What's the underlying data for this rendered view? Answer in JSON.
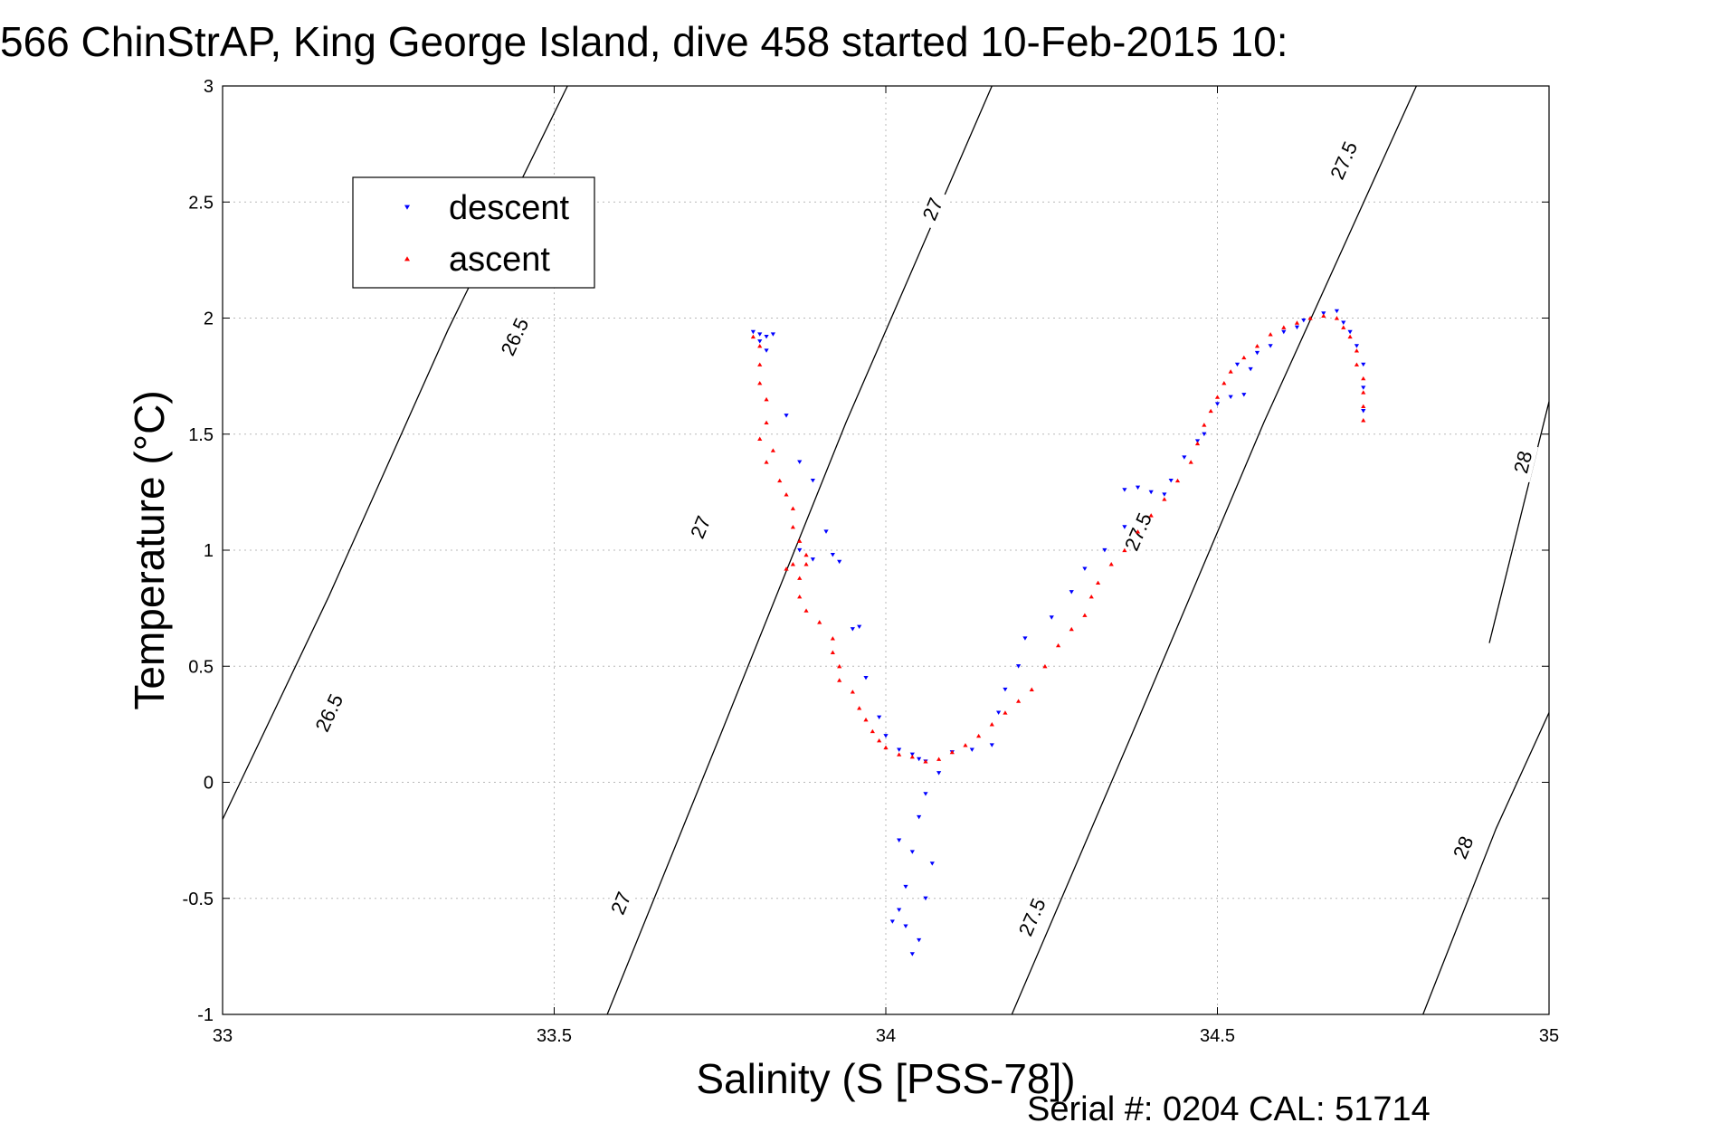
{
  "chart_data": {
    "type": "scatter",
    "title": "566 ChinStrAP, King George Island, dive 458 started 10-Feb-2015 10:",
    "xlabel": "Salinity (S [PSS-78])",
    "ylabel": "Temperature (°C)",
    "xlim": [
      33,
      35
    ],
    "ylim": [
      -1,
      3
    ],
    "xticks": [
      33,
      33.5,
      34,
      34.5,
      35
    ],
    "xtick_labels": [
      "33",
      "33.5",
      "34",
      "34.5",
      "35"
    ],
    "yticks": [
      -1,
      -0.5,
      0,
      0.5,
      1,
      1.5,
      2,
      2.5,
      3
    ],
    "ytick_labels": [
      "-1",
      "-0.5",
      "0",
      "0.5",
      "1",
      "1.5",
      "2",
      "2.5",
      "3"
    ],
    "grid": true,
    "legend_position": "top-left",
    "footer": "Serial #: 0204  CAL: 51714",
    "density_contours": [
      {
        "level": 26.5,
        "label": "26.5",
        "points": [
          [
            33.0,
            -0.16
          ],
          [
            33.16,
            0.8
          ],
          [
            33.34,
            1.95
          ],
          [
            33.52,
            3.0
          ]
        ],
        "label_positions": [
          [
            33.16,
            0.3
          ],
          [
            33.44,
            1.92
          ]
        ]
      },
      {
        "level": 27,
        "label": "27",
        "points": [
          [
            33.58,
            -1.0
          ],
          [
            33.75,
            0.2
          ],
          [
            33.94,
            1.55
          ],
          [
            34.16,
            3.0
          ]
        ],
        "label_positions": [
          [
            33.6,
            -0.52
          ],
          [
            33.72,
            1.1
          ],
          [
            34.07,
            2.47
          ]
        ]
      },
      {
        "level": 27.5,
        "label": "27.5",
        "points": [
          [
            34.19,
            -1.0
          ],
          [
            34.37,
            0.2
          ],
          [
            34.57,
            1.55
          ],
          [
            34.8,
            3.0
          ]
        ],
        "label_positions": [
          [
            34.22,
            -0.58
          ],
          [
            34.38,
            1.08
          ],
          [
            34.69,
            2.68
          ]
        ]
      },
      {
        "level": 28,
        "label": "28",
        "points": [
          [
            34.81,
            -1.0
          ],
          [
            34.92,
            -0.2
          ],
          [
            35.0,
            0.3
          ]
        ],
        "label_positions": [
          [
            34.87,
            -0.28
          ]
        ]
      },
      {
        "level": 28,
        "label": "28",
        "points": [
          [
            34.91,
            0.6
          ],
          [
            35.0,
            1.64
          ]
        ],
        "label_positions": [
          [
            34.96,
            1.38
          ]
        ]
      }
    ],
    "series": [
      {
        "name": "descent",
        "color": "#0000ff",
        "marker": "triangle-down",
        "points": [
          [
            33.8,
            1.94
          ],
          [
            33.81,
            1.93
          ],
          [
            33.82,
            1.92
          ],
          [
            33.81,
            1.9
          ],
          [
            33.83,
            1.93
          ],
          [
            33.82,
            1.86
          ],
          [
            33.85,
            1.58
          ],
          [
            33.87,
            1.38
          ],
          [
            33.89,
            1.3
          ],
          [
            33.91,
            1.08
          ],
          [
            33.87,
            1.0
          ],
          [
            33.89,
            0.96
          ],
          [
            33.92,
            0.98
          ],
          [
            33.93,
            0.95
          ],
          [
            33.95,
            0.66
          ],
          [
            33.96,
            0.67
          ],
          [
            33.97,
            0.45
          ],
          [
            33.99,
            0.28
          ],
          [
            34.0,
            0.2
          ],
          [
            34.02,
            0.14
          ],
          [
            34.04,
            0.12
          ],
          [
            34.05,
            0.1
          ],
          [
            34.06,
            0.09
          ],
          [
            34.08,
            0.04
          ],
          [
            34.06,
            -0.05
          ],
          [
            34.05,
            -0.15
          ],
          [
            34.04,
            -0.3
          ],
          [
            34.03,
            -0.45
          ],
          [
            34.02,
            -0.55
          ],
          [
            34.01,
            -0.6
          ],
          [
            34.03,
            -0.62
          ],
          [
            34.04,
            -0.74
          ],
          [
            34.05,
            -0.68
          ],
          [
            34.06,
            -0.5
          ],
          [
            34.07,
            -0.35
          ],
          [
            34.02,
            -0.25
          ],
          [
            34.1,
            0.13
          ],
          [
            34.13,
            0.14
          ],
          [
            34.16,
            0.16
          ],
          [
            34.17,
            0.3
          ],
          [
            34.18,
            0.4
          ],
          [
            34.2,
            0.5
          ],
          [
            34.21,
            0.62
          ],
          [
            34.25,
            0.71
          ],
          [
            34.28,
            0.82
          ],
          [
            34.3,
            0.92
          ],
          [
            34.33,
            1.0
          ],
          [
            34.36,
            1.1
          ],
          [
            34.36,
            1.26
          ],
          [
            34.38,
            1.27
          ],
          [
            34.4,
            1.25
          ],
          [
            34.42,
            1.24
          ],
          [
            34.43,
            1.3
          ],
          [
            34.45,
            1.4
          ],
          [
            34.47,
            1.47
          ],
          [
            34.48,
            1.5
          ],
          [
            34.5,
            1.63
          ],
          [
            34.52,
            1.66
          ],
          [
            34.54,
            1.67
          ],
          [
            34.55,
            1.78
          ],
          [
            34.53,
            1.8
          ],
          [
            34.56,
            1.85
          ],
          [
            34.58,
            1.88
          ],
          [
            34.6,
            1.94
          ],
          [
            34.62,
            1.96
          ],
          [
            34.63,
            1.99
          ],
          [
            34.66,
            2.02
          ],
          [
            34.68,
            2.03
          ],
          [
            34.69,
            1.98
          ],
          [
            34.7,
            1.94
          ],
          [
            34.71,
            1.88
          ],
          [
            34.72,
            1.8
          ],
          [
            34.72,
            1.7
          ],
          [
            34.72,
            1.6
          ]
        ]
      },
      {
        "name": "ascent",
        "color": "#ff0000",
        "marker": "triangle-up",
        "points": [
          [
            33.8,
            1.92
          ],
          [
            33.81,
            1.88
          ],
          [
            33.81,
            1.8
          ],
          [
            33.81,
            1.72
          ],
          [
            33.82,
            1.65
          ],
          [
            33.82,
            1.55
          ],
          [
            33.81,
            1.48
          ],
          [
            33.83,
            1.43
          ],
          [
            33.82,
            1.38
          ],
          [
            33.84,
            1.3
          ],
          [
            33.85,
            1.24
          ],
          [
            33.86,
            1.18
          ],
          [
            33.86,
            1.1
          ],
          [
            33.87,
            1.04
          ],
          [
            33.88,
            0.98
          ],
          [
            33.86,
            0.94
          ],
          [
            33.85,
            0.92
          ],
          [
            33.88,
            0.94
          ],
          [
            33.87,
            0.88
          ],
          [
            33.87,
            0.8
          ],
          [
            33.88,
            0.74
          ],
          [
            33.9,
            0.69
          ],
          [
            33.92,
            0.62
          ],
          [
            33.92,
            0.56
          ],
          [
            33.93,
            0.5
          ],
          [
            33.93,
            0.44
          ],
          [
            33.95,
            0.39
          ],
          [
            33.96,
            0.32
          ],
          [
            33.97,
            0.27
          ],
          [
            33.98,
            0.22
          ],
          [
            33.99,
            0.18
          ],
          [
            34.0,
            0.15
          ],
          [
            34.02,
            0.12
          ],
          [
            34.04,
            0.11
          ],
          [
            34.06,
            0.09
          ],
          [
            34.08,
            0.1
          ],
          [
            34.1,
            0.13
          ],
          [
            34.12,
            0.16
          ],
          [
            34.14,
            0.2
          ],
          [
            34.16,
            0.25
          ],
          [
            34.18,
            0.3
          ],
          [
            34.2,
            0.35
          ],
          [
            34.22,
            0.4
          ],
          [
            34.24,
            0.5
          ],
          [
            34.26,
            0.59
          ],
          [
            34.28,
            0.66
          ],
          [
            34.3,
            0.72
          ],
          [
            34.31,
            0.8
          ],
          [
            34.32,
            0.86
          ],
          [
            34.34,
            0.94
          ],
          [
            34.36,
            1.0
          ],
          [
            34.38,
            1.08
          ],
          [
            34.4,
            1.15
          ],
          [
            34.42,
            1.22
          ],
          [
            34.44,
            1.3
          ],
          [
            34.46,
            1.38
          ],
          [
            34.47,
            1.46
          ],
          [
            34.48,
            1.54
          ],
          [
            34.49,
            1.6
          ],
          [
            34.5,
            1.66
          ],
          [
            34.51,
            1.72
          ],
          [
            34.52,
            1.77
          ],
          [
            34.54,
            1.83
          ],
          [
            34.56,
            1.88
          ],
          [
            34.58,
            1.93
          ],
          [
            34.6,
            1.96
          ],
          [
            34.62,
            1.98
          ],
          [
            34.64,
            2.0
          ],
          [
            34.66,
            2.01
          ],
          [
            34.68,
            2.0
          ],
          [
            34.69,
            1.96
          ],
          [
            34.7,
            1.92
          ],
          [
            34.71,
            1.86
          ],
          [
            34.71,
            1.8
          ],
          [
            34.72,
            1.74
          ],
          [
            34.72,
            1.68
          ],
          [
            34.72,
            1.62
          ],
          [
            34.72,
            1.56
          ]
        ]
      }
    ]
  }
}
